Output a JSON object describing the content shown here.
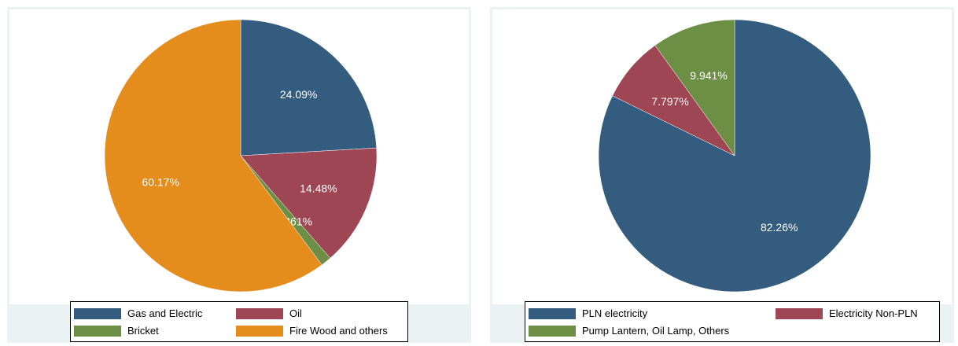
{
  "chart_data": [
    {
      "type": "pie",
      "title": "",
      "slices": [
        {
          "label": "Gas and Electric",
          "value": 24.09,
          "value_label": "24.09%",
          "color": "#335c7e"
        },
        {
          "label": "Oil",
          "value": 14.48,
          "value_label": "14.48%",
          "color": "#9e4654"
        },
        {
          "label": "Bricket",
          "value": 1.261,
          "value_label": "1.261%",
          "color": "#6c8f45"
        },
        {
          "label": "Fire Wood and others",
          "value": 60.17,
          "value_label": "60.17%",
          "color": "#e48c1c"
        }
      ],
      "legend": {
        "position": "bottom",
        "columns": 2
      }
    },
    {
      "type": "pie",
      "title": "",
      "slices": [
        {
          "label": "PLN electricity",
          "value": 82.26,
          "value_label": "82.26%",
          "color": "#335c7e"
        },
        {
          "label": "Electricity Non-PLN",
          "value": 7.797,
          "value_label": "7.797%",
          "color": "#9e4654"
        },
        {
          "label": "Pump Lantern, Oil Lamp, Others",
          "value": 9.941,
          "value_label": "9.941%",
          "color": "#6c8f45"
        }
      ],
      "legend": {
        "position": "bottom",
        "columns": 2
      }
    }
  ]
}
